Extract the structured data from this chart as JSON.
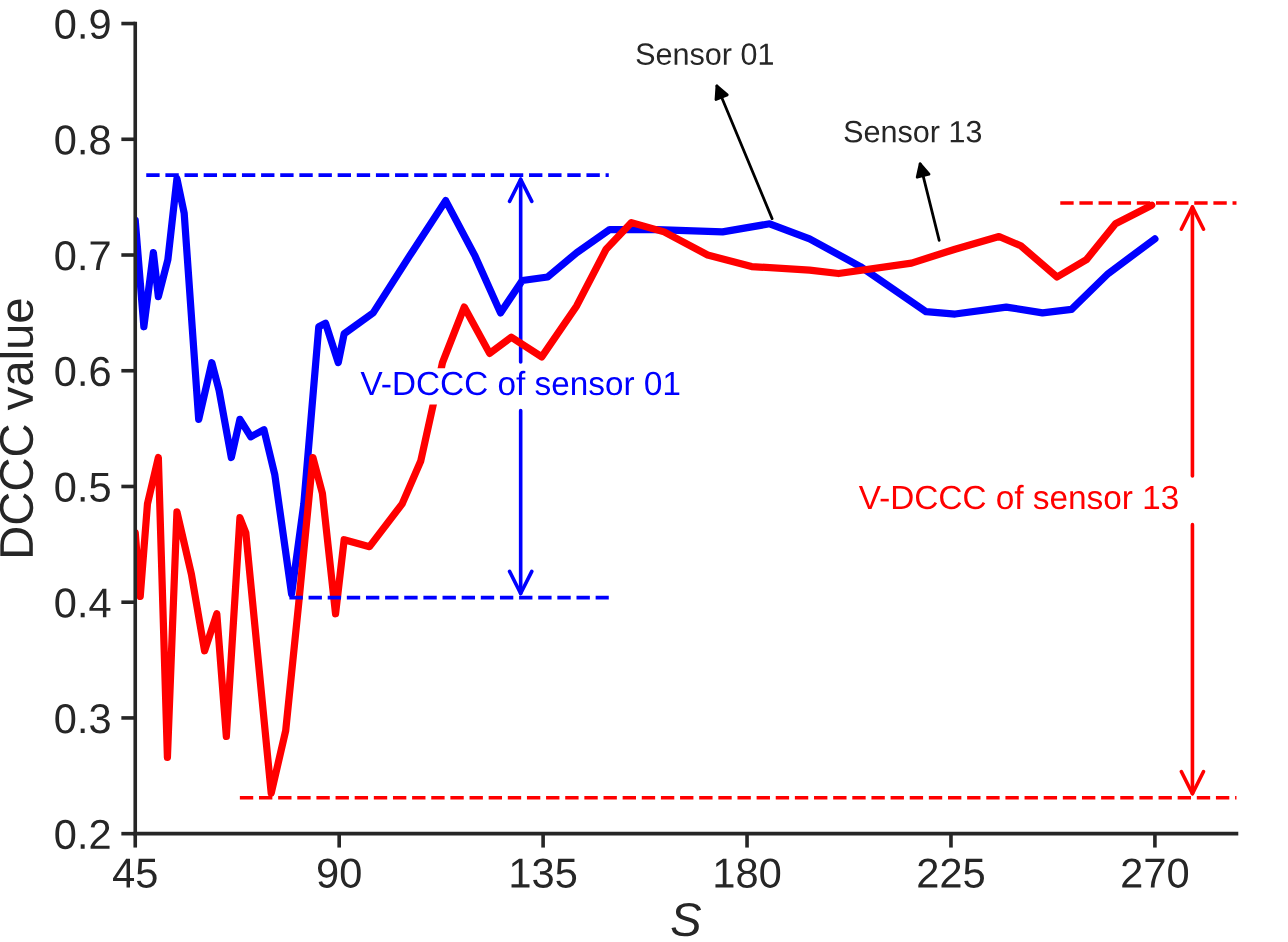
{
  "chart_data": {
    "type": "line",
    "xlabel": "S",
    "ylabel": "DCCC value",
    "xlim": [
      45,
      288
    ],
    "ylim": [
      0.2,
      0.9
    ],
    "xticks": [
      45,
      90,
      135,
      180,
      225,
      270
    ],
    "yticks": [
      0.2,
      0.3,
      0.4,
      0.5,
      0.6,
      0.7,
      0.8,
      0.9
    ],
    "grid": false,
    "legend": false,
    "marker": "none",
    "line_style": "solid",
    "series": [
      {
        "color": "#0000ff",
        "x": [
          45,
          46.9,
          49,
          50.1,
          52.2,
          54.2,
          55.8,
          59,
          61.9,
          63.5,
          66.2,
          68.1,
          70.5,
          73.4,
          75.8,
          79.5,
          82.2,
          85.5,
          87,
          89.8,
          91.1,
          97.5,
          105.5,
          113.5,
          120,
          125.6,
          130.4,
          136,
          142.4,
          149.7,
          160.1,
          174.6,
          185,
          193.8,
          205,
          219.5,
          225.9,
          237.2,
          245.2,
          251.6,
          259.7,
          270
        ],
        "values": [
          0.73,
          0.638,
          0.702,
          0.664,
          0.696,
          0.766,
          0.736,
          0.558,
          0.607,
          0.583,
          0.525,
          0.558,
          0.543,
          0.549,
          0.51,
          0.407,
          0.485,
          0.638,
          0.641,
          0.607,
          0.632,
          0.65,
          0.699,
          0.747,
          0.699,
          0.65,
          0.678,
          0.681,
          0.702,
          0.722,
          0.722,
          0.72,
          0.727,
          0.714,
          0.69,
          0.651,
          0.649,
          0.655,
          0.65,
          0.653,
          0.684,
          0.714
        ]
      },
      {
        "color": "#ff0000",
        "x": [
          45,
          46.1,
          47.7,
          50.1,
          52.1,
          54.2,
          57.4,
          60.3,
          63,
          65.1,
          68.1,
          69.4,
          75,
          78.2,
          81.1,
          84.2,
          86.3,
          89.2,
          91.1,
          96.7,
          103.9,
          108,
          112.8,
          117.6,
          123.2,
          128,
          134.7,
          142.4,
          148.9,
          154.5,
          161.7,
          171.3,
          181,
          193.8,
          200.2,
          216.3,
          225.9,
          235.6,
          240.4,
          248.4,
          254.9,
          261.3,
          269.3
        ],
        "values": [
          0.46,
          0.405,
          0.485,
          0.525,
          0.266,
          0.478,
          0.424,
          0.358,
          0.39,
          0.284,
          0.473,
          0.46,
          0.235,
          0.289,
          0.4,
          0.525,
          0.494,
          0.39,
          0.454,
          0.448,
          0.485,
          0.522,
          0.607,
          0.655,
          0.615,
          0.629,
          0.612,
          0.656,
          0.705,
          0.728,
          0.72,
          0.7,
          0.69,
          0.687,
          0.684,
          0.693,
          0.705,
          0.716,
          0.708,
          0.681,
          0.696,
          0.727,
          0.743
        ]
      }
    ],
    "ref_lines": [
      {
        "axis": "y",
        "value": 0.769,
        "color": "#0000ff",
        "line_style": "dashed",
        "label": "V-DCCC of sensor 01"
      },
      {
        "axis": "y",
        "value": 0.404,
        "color": "#0000ff",
        "line_style": "dashed"
      },
      {
        "axis": "y",
        "value": 0.745,
        "color": "#ff0000",
        "line_style": "dashed",
        "label": "V-DCCC of sensor 13"
      },
      {
        "axis": "y",
        "value": 0.231,
        "color": "#ff0000",
        "line_style": "dashed"
      }
    ],
    "annotations": [
      {
        "text": "Sensor 01",
        "x": 186,
        "y": 0.727
      },
      {
        "text": "Sensor 13",
        "x": 222.7,
        "y": 0.708
      }
    ]
  }
}
